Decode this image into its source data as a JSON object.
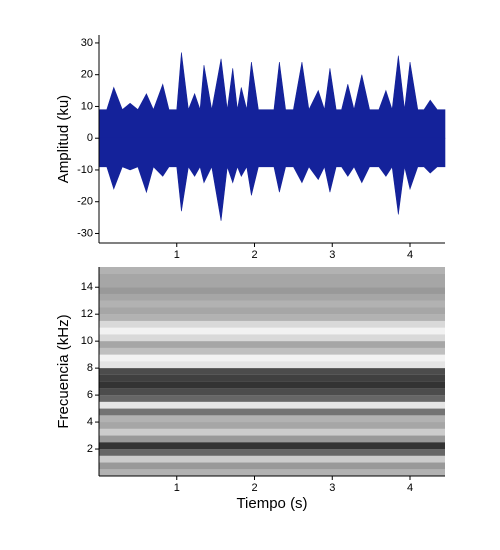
{
  "chart_data": [
    {
      "type": "area",
      "ylabel": "Amplitud (ku)",
      "x": [
        0.0,
        0.1,
        0.19,
        0.3,
        0.4,
        0.5,
        0.61,
        0.7,
        0.82,
        0.9,
        1.0,
        1.06,
        1.15,
        1.23,
        1.3,
        1.35,
        1.45,
        1.57,
        1.65,
        1.72,
        1.78,
        1.83,
        1.9,
        1.96,
        2.05,
        2.15,
        2.25,
        2.32,
        2.4,
        2.5,
        2.61,
        2.7,
        2.82,
        2.9,
        2.97,
        3.05,
        3.12,
        3.2,
        3.28,
        3.38,
        3.48,
        3.6,
        3.69,
        3.77,
        3.85,
        3.93,
        4.0,
        4.1,
        4.18,
        4.26,
        4.35,
        4.45
      ],
      "series": [
        {
          "color": "#14229a",
          "values": [
            9,
            9,
            16,
            9,
            11,
            9,
            14,
            9,
            17,
            9,
            9,
            27,
            9,
            14,
            9,
            23,
            9,
            25,
            9,
            22,
            9,
            16,
            9,
            24,
            9,
            9,
            9,
            24,
            9,
            9,
            24,
            9,
            15,
            9,
            22,
            9,
            9,
            17,
            9,
            20,
            9,
            9,
            15,
            9,
            26,
            9,
            24,
            9,
            9,
            12,
            9,
            9
          ]
        },
        {
          "color": "#14229a",
          "values": [
            -9,
            -9,
            -16,
            -9,
            -10,
            -9,
            -17,
            -9,
            -12,
            -9,
            -9,
            -23,
            -9,
            -12,
            -9,
            -14,
            -9,
            -26,
            -9,
            -14,
            -9,
            -12,
            -9,
            -18,
            -9,
            -9,
            -9,
            -17,
            -9,
            -9,
            -14,
            -9,
            -13,
            -9,
            -17,
            -9,
            -9,
            -12,
            -9,
            -14,
            -9,
            -9,
            -12,
            -9,
            -24,
            -9,
            -16,
            -9,
            -9,
            -11,
            -9,
            -9
          ]
        }
      ],
      "xlim": [
        0,
        4.45
      ],
      "xticks": [
        1,
        2,
        3,
        4
      ],
      "ylim": [
        -33,
        32.5
      ],
      "yticks": [
        -30,
        -20,
        -10,
        0,
        10,
        20,
        30
      ]
    },
    {
      "type": "heatmap",
      "ylabel": "Frecuencia (kHz)",
      "xlabel": "Tiempo (s)",
      "color": "#000000",
      "ybins": [
        0,
        0.5,
        1,
        1.5,
        2,
        2.5,
        3,
        3.5,
        4,
        4.5,
        5,
        5.5,
        6,
        6.5,
        7,
        7.5,
        8,
        8.5,
        9,
        9.5,
        10,
        10.5,
        11,
        11.5,
        12,
        12.5,
        13,
        13.5,
        14,
        14.5,
        15,
        15.5
      ],
      "values": [
        0.3,
        0.4,
        0.2,
        0.6,
        0.8,
        0.4,
        0.2,
        0.35,
        0.3,
        0.55,
        0.1,
        0.6,
        0.7,
        0.8,
        0.75,
        0.7,
        0.1,
        0.05,
        0.25,
        0.35,
        0.15,
        0.05,
        0.15,
        0.3,
        0.35,
        0.3,
        0.35,
        0.4,
        0.35,
        0.35,
        0.3
      ],
      "xlim": [
        0,
        4.45
      ],
      "xticks": [
        1,
        2,
        3,
        4
      ],
      "ylim": [
        0,
        15.5
      ],
      "yticks": [
        2,
        4,
        6,
        8,
        10,
        12,
        14
      ]
    }
  ]
}
